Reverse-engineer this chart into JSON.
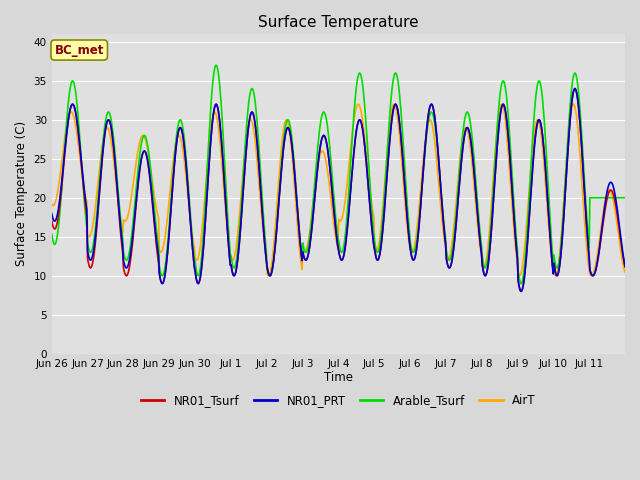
{
  "title": "Surface Temperature",
  "ylabel": "Surface Temperature (C)",
  "xlabel": "Time",
  "ylim": [
    0,
    41
  ],
  "yticks": [
    0,
    5,
    10,
    15,
    20,
    25,
    30,
    35,
    40
  ],
  "fig_bg_color": "#d8d8d8",
  "plot_bg_color": "#e0e0e0",
  "series": {
    "NR01_Tsurf": {
      "color": "#cc0000",
      "lw": 1.2
    },
    "NR01_PRT": {
      "color": "#0000cc",
      "lw": 1.2
    },
    "Arable_Tsurf": {
      "color": "#00dd00",
      "lw": 1.2
    },
    "AirT": {
      "color": "#ffaa00",
      "lw": 1.2
    }
  },
  "annotation": "BC_met",
  "annotation_color": "#880000",
  "annotation_bg": "#ffffaa",
  "annotation_border": "#888800",
  "n_days": 16,
  "hours_per_day": 48,
  "daily_max_nr01": [
    32,
    30,
    26,
    29,
    32,
    31,
    29,
    28,
    30,
    32,
    32,
    29,
    32,
    30,
    34,
    21
  ],
  "daily_min_nr01": [
    16,
    11,
    10,
    9,
    9,
    10,
    10,
    12,
    12,
    12,
    12,
    11,
    10,
    8,
    10,
    10
  ],
  "daily_max_prt": [
    32,
    30,
    26,
    29,
    32,
    31,
    29,
    28,
    30,
    32,
    32,
    29,
    32,
    30,
    34,
    22
  ],
  "daily_min_prt": [
    17,
    12,
    11,
    9,
    9,
    10,
    10,
    12,
    12,
    12,
    12,
    11,
    10,
    8,
    10,
    10
  ],
  "daily_max_arable": [
    35,
    31,
    28,
    30,
    37,
    34,
    30,
    31,
    36,
    36,
    31,
    31,
    35,
    35,
    36,
    20
  ],
  "daily_min_arable": [
    14,
    13,
    12,
    10,
    10,
    11,
    10,
    13,
    13,
    13,
    13,
    12,
    11,
    9,
    11,
    20
  ],
  "daily_max_air": [
    31,
    29,
    28,
    28,
    31,
    30,
    30,
    26,
    32,
    32,
    30,
    29,
    32,
    30,
    32,
    21
  ],
  "daily_min_air": [
    19,
    15,
    17,
    13,
    12,
    12,
    10,
    13,
    17,
    13,
    13,
    12,
    11,
    10,
    10,
    10
  ],
  "xticklabels": [
    "Jun 26",
    "Jun 27",
    "Jun 28",
    "Jun 29",
    "Jun 30",
    "Jul 1",
    "Jul 2",
    "Jul 3",
    "Jul 4",
    "Jul 5",
    "Jul 6",
    "Jul 7",
    "Jul 8",
    "Jul 9",
    "Jul 10",
    "Jul 11"
  ],
  "grid_color": "#ffffff",
  "legend_entries": [
    "NR01_Tsurf",
    "NR01_PRT",
    "Arable_Tsurf",
    "AirT"
  ]
}
